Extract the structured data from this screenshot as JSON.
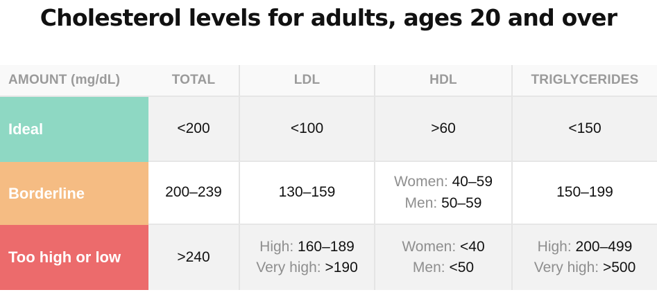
{
  "title": "Cholesterol levels for adults, ages 20 and over",
  "headers": [
    "AMOUNT (mg/dL)",
    "TOTAL",
    "LDL",
    "HDL",
    "TRIGLYCERIDES"
  ],
  "colors": {
    "ideal": "#8ed8c3",
    "borderline": "#f5bc83",
    "too_high_or_low": "#ec6b6c"
  },
  "rows": [
    {
      "label": "Ideal",
      "total": "<200",
      "ldl": "<100",
      "hdl": ">60",
      "triglycerides": "<150"
    },
    {
      "label": "Borderline",
      "total": "200–239",
      "ldl": "130–159",
      "hdl": {
        "line1_label": "Women:",
        "line1_value": "40–59",
        "line2_label": "Men:",
        "line2_value": "50–59"
      },
      "triglycerides": "150–199"
    },
    {
      "label": "Too high or low",
      "total": ">240",
      "ldl": {
        "line1_label": "High:",
        "line1_value": "160–189",
        "line2_label": "Very high:",
        "line2_value": ">190"
      },
      "hdl": {
        "line1_label": "Women:",
        "line1_value": "<40",
        "line2_label": "Men:",
        "line2_value": "<50"
      },
      "triglycerides": {
        "line1_label": "High:",
        "line1_value": "200–499",
        "line2_label": "Very high:",
        "line2_value": ">500"
      }
    }
  ]
}
